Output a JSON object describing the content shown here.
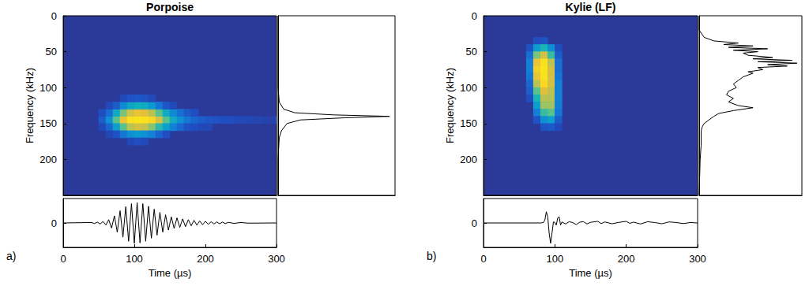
{
  "chart_data": [
    {
      "type": "heatmap",
      "title": "Porpoise",
      "ylabel": "Frequency (kHz)",
      "xlim": [
        0,
        300
      ],
      "ylim": [
        0,
        250
      ],
      "yticks": [
        0,
        50,
        100,
        150,
        200
      ],
      "tick_labels": "y",
      "time_step": 10,
      "freq_step": 10,
      "value_range": [
        0,
        1
      ],
      "cells": [
        [
          50,
          140,
          0.15
        ],
        [
          60,
          140,
          0.3
        ],
        [
          70,
          140,
          0.55
        ],
        [
          80,
          140,
          0.8
        ],
        [
          90,
          140,
          0.95
        ],
        [
          100,
          140,
          1.0
        ],
        [
          110,
          140,
          0.98
        ],
        [
          120,
          140,
          0.9
        ],
        [
          130,
          140,
          0.75
        ],
        [
          140,
          140,
          0.55
        ],
        [
          150,
          140,
          0.4
        ],
        [
          160,
          140,
          0.3
        ],
        [
          170,
          140,
          0.22
        ],
        [
          180,
          140,
          0.18
        ],
        [
          190,
          140,
          0.15
        ],
        [
          200,
          140,
          0.13
        ],
        [
          210,
          140,
          0.12
        ],
        [
          220,
          140,
          0.1
        ],
        [
          230,
          140,
          0.1
        ],
        [
          240,
          140,
          0.08
        ],
        [
          250,
          140,
          0.08
        ],
        [
          260,
          140,
          0.07
        ],
        [
          270,
          140,
          0.06
        ],
        [
          280,
          140,
          0.05
        ],
        [
          290,
          140,
          0.05
        ],
        [
          50,
          130,
          0.1
        ],
        [
          60,
          130,
          0.2
        ],
        [
          70,
          130,
          0.4
        ],
        [
          80,
          130,
          0.6
        ],
        [
          90,
          130,
          0.75
        ],
        [
          100,
          130,
          0.8
        ],
        [
          110,
          130,
          0.78
        ],
        [
          120,
          130,
          0.7
        ],
        [
          130,
          130,
          0.55
        ],
        [
          140,
          130,
          0.4
        ],
        [
          150,
          130,
          0.28
        ],
        [
          160,
          130,
          0.2
        ],
        [
          170,
          130,
          0.14
        ],
        [
          180,
          130,
          0.1
        ],
        [
          50,
          150,
          0.08
        ],
        [
          60,
          150,
          0.18
        ],
        [
          70,
          150,
          0.35
        ],
        [
          80,
          150,
          0.55
        ],
        [
          90,
          150,
          0.7
        ],
        [
          100,
          150,
          0.75
        ],
        [
          110,
          150,
          0.72
        ],
        [
          120,
          150,
          0.62
        ],
        [
          130,
          150,
          0.48
        ],
        [
          140,
          150,
          0.35
        ],
        [
          150,
          150,
          0.25
        ],
        [
          160,
          150,
          0.18
        ],
        [
          170,
          150,
          0.12
        ],
        [
          180,
          150,
          0.1
        ],
        [
          190,
          150,
          0.08
        ],
        [
          200,
          150,
          0.07
        ],
        [
          60,
          120,
          0.08
        ],
        [
          70,
          120,
          0.15
        ],
        [
          80,
          120,
          0.28
        ],
        [
          90,
          120,
          0.38
        ],
        [
          100,
          120,
          0.42
        ],
        [
          110,
          120,
          0.4
        ],
        [
          120,
          120,
          0.33
        ],
        [
          130,
          120,
          0.22
        ],
        [
          140,
          120,
          0.13
        ],
        [
          150,
          120,
          0.08
        ],
        [
          60,
          160,
          0.07
        ],
        [
          70,
          160,
          0.12
        ],
        [
          80,
          160,
          0.22
        ],
        [
          90,
          160,
          0.3
        ],
        [
          100,
          160,
          0.33
        ],
        [
          110,
          160,
          0.3
        ],
        [
          120,
          160,
          0.25
        ],
        [
          130,
          160,
          0.17
        ],
        [
          140,
          160,
          0.1
        ],
        [
          80,
          110,
          0.08
        ],
        [
          90,
          110,
          0.12
        ],
        [
          100,
          110,
          0.13
        ],
        [
          110,
          110,
          0.12
        ],
        [
          120,
          110,
          0.08
        ],
        [
          90,
          170,
          0.08
        ],
        [
          100,
          170,
          0.1
        ],
        [
          110,
          170,
          0.08
        ]
      ]
    },
    {
      "type": "line",
      "xlim": [
        0,
        1.05
      ],
      "ylim": [
        0,
        250
      ],
      "tick_labels": false,
      "color": "#000000",
      "x": [
        0,
        0,
        0.01,
        0.05,
        0.15,
        0.5,
        1.0,
        0.6,
        0.2,
        0.08,
        0.03,
        0.01,
        0,
        0
      ],
      "y": [
        0,
        100,
        120,
        130,
        135,
        138,
        140,
        142,
        145,
        150,
        160,
        170,
        200,
        250
      ]
    },
    {
      "type": "line",
      "xlabel": "Time (µs)",
      "annotation": "a)",
      "xlim": [
        0,
        300
      ],
      "xticks": [
        0,
        100,
        200,
        300
      ],
      "ylim": [
        -1.2,
        1.2
      ],
      "yticks": [
        0
      ],
      "color": "#000000",
      "x": [
        0,
        40,
        44,
        48,
        52,
        56,
        60,
        64,
        68,
        72,
        76,
        80,
        84,
        88,
        92,
        96,
        100,
        104,
        108,
        112,
        116,
        120,
        124,
        128,
        132,
        136,
        140,
        144,
        148,
        152,
        156,
        160,
        164,
        168,
        172,
        176,
        180,
        184,
        188,
        192,
        196,
        200,
        204,
        208,
        212,
        216,
        220,
        224,
        228,
        232,
        240,
        250,
        260,
        300
      ],
      "values": [
        0,
        0.02,
        -0.03,
        0.04,
        -0.05,
        0.07,
        -0.1,
        0.16,
        -0.25,
        0.35,
        -0.45,
        0.6,
        -0.7,
        0.8,
        -0.9,
        0.95,
        -1.0,
        1.0,
        -0.98,
        0.95,
        -0.9,
        0.82,
        -0.75,
        0.68,
        -0.6,
        0.52,
        -0.45,
        0.4,
        -0.35,
        0.3,
        -0.27,
        0.25,
        -0.22,
        0.2,
        -0.18,
        0.16,
        -0.14,
        0.13,
        -0.11,
        0.1,
        -0.09,
        0.08,
        -0.07,
        0.06,
        -0.05,
        0.05,
        -0.04,
        0.04,
        -0.03,
        0.03,
        -0.02,
        0.02,
        -0.01,
        0
      ]
    },
    {
      "type": "heatmap",
      "title": "Kylie (LF)",
      "ylabel": "Frequency (kHz)",
      "xlim": [
        0,
        300
      ],
      "ylim": [
        0,
        250
      ],
      "yticks": [
        0,
        50,
        100,
        150,
        200
      ],
      "tick_labels": "y",
      "time_step": 10,
      "freq_step": 10,
      "value_range": [
        0,
        1
      ],
      "cells": [
        [
          70,
          30,
          0.1
        ],
        [
          80,
          30,
          0.12
        ],
        [
          60,
          40,
          0.12
        ],
        [
          70,
          40,
          0.35
        ],
        [
          80,
          40,
          0.45
        ],
        [
          90,
          40,
          0.3
        ],
        [
          100,
          40,
          0.1
        ],
        [
          60,
          50,
          0.2
        ],
        [
          70,
          50,
          0.6
        ],
        [
          80,
          50,
          0.75
        ],
        [
          90,
          50,
          0.5
        ],
        [
          100,
          50,
          0.15
        ],
        [
          60,
          60,
          0.25
        ],
        [
          70,
          60,
          0.8
        ],
        [
          80,
          60,
          0.95
        ],
        [
          90,
          60,
          0.7
        ],
        [
          100,
          60,
          0.2
        ],
        [
          60,
          70,
          0.25
        ],
        [
          70,
          70,
          0.85
        ],
        [
          80,
          70,
          1.0
        ],
        [
          90,
          70,
          0.75
        ],
        [
          100,
          70,
          0.2
        ],
        [
          60,
          80,
          0.22
        ],
        [
          70,
          80,
          0.8
        ],
        [
          80,
          80,
          0.98
        ],
        [
          90,
          80,
          0.75
        ],
        [
          100,
          80,
          0.22
        ],
        [
          60,
          90,
          0.18
        ],
        [
          70,
          90,
          0.7
        ],
        [
          80,
          90,
          0.9
        ],
        [
          90,
          90,
          0.75
        ],
        [
          100,
          90,
          0.25
        ],
        [
          60,
          100,
          0.15
        ],
        [
          70,
          100,
          0.55
        ],
        [
          80,
          100,
          0.78
        ],
        [
          90,
          100,
          0.7
        ],
        [
          100,
          100,
          0.25
        ],
        [
          60,
          110,
          0.1
        ],
        [
          70,
          110,
          0.45
        ],
        [
          80,
          110,
          0.7
        ],
        [
          90,
          110,
          0.68
        ],
        [
          100,
          110,
          0.25
        ],
        [
          70,
          120,
          0.35
        ],
        [
          80,
          120,
          0.65
        ],
        [
          90,
          120,
          0.65
        ],
        [
          100,
          120,
          0.25
        ],
        [
          70,
          130,
          0.25
        ],
        [
          80,
          130,
          0.5
        ],
        [
          90,
          130,
          0.55
        ],
        [
          100,
          130,
          0.22
        ],
        [
          70,
          140,
          0.12
        ],
        [
          80,
          140,
          0.3
        ],
        [
          90,
          140,
          0.35
        ],
        [
          100,
          140,
          0.15
        ],
        [
          80,
          150,
          0.12
        ],
        [
          90,
          150,
          0.14
        ],
        [
          100,
          150,
          0.08
        ]
      ]
    },
    {
      "type": "line",
      "xlim": [
        0,
        1.05
      ],
      "ylim": [
        0,
        250
      ],
      "tick_labels": false,
      "color": "#000000",
      "x": [
        0,
        0,
        0.05,
        0.15,
        0.4,
        0.25,
        0.55,
        0.3,
        0.7,
        0.35,
        0.6,
        0.45,
        0.5,
        0.75,
        0.55,
        0.95,
        0.6,
        1.0,
        0.7,
        0.9,
        0.6,
        0.65,
        0.5,
        0.55,
        0.45,
        0.4,
        0.35,
        0.38,
        0.3,
        0.28,
        0.35,
        0.3,
        0.4,
        0.55,
        0.35,
        0.2,
        0.15,
        0.1,
        0.05,
        0.03,
        0.02,
        0.02,
        0.01,
        0
      ],
      "y": [
        0,
        20,
        30,
        35,
        38,
        40,
        42,
        44,
        46,
        48,
        50,
        52,
        55,
        58,
        60,
        62,
        64,
        66,
        68,
        70,
        72,
        75,
        78,
        80,
        85,
        90,
        95,
        100,
        105,
        110,
        115,
        120,
        125,
        128,
        132,
        136,
        140,
        145,
        150,
        155,
        160,
        180,
        200,
        250
      ]
    },
    {
      "type": "line",
      "xlabel": "Time (µs)",
      "annotation": "b)",
      "xlim": [
        0,
        300
      ],
      "xticks": [
        0,
        100,
        200,
        300
      ],
      "ylim": [
        -1.2,
        1.2
      ],
      "yticks": [
        0
      ],
      "color": "#000000",
      "x": [
        0,
        80,
        84,
        86,
        88,
        90,
        92,
        94,
        96,
        98,
        100,
        102,
        104,
        106,
        108,
        110,
        115,
        120,
        125,
        130,
        135,
        140,
        145,
        150,
        160,
        165,
        170,
        180,
        190,
        200,
        205,
        210,
        220,
        230,
        240,
        250,
        260,
        270,
        280,
        290,
        300
      ],
      "values": [
        0,
        0,
        0.02,
        0.15,
        0.55,
        0.3,
        -0.5,
        -1.0,
        -0.5,
        0.05,
        0.02,
        -0.1,
        0.25,
        0.3,
        -0.1,
        0.05,
        -0.05,
        0.06,
        0.02,
        -0.08,
        0.04,
        0.06,
        -0.05,
        0.03,
        0.08,
        -0.03,
        0.05,
        -0.04,
        0.03,
        0.08,
        -0.02,
        0.04,
        -0.05,
        0.06,
        0.02,
        -0.04,
        0.05,
        0.02,
        -0.03,
        0.02,
        0
      ]
    }
  ]
}
